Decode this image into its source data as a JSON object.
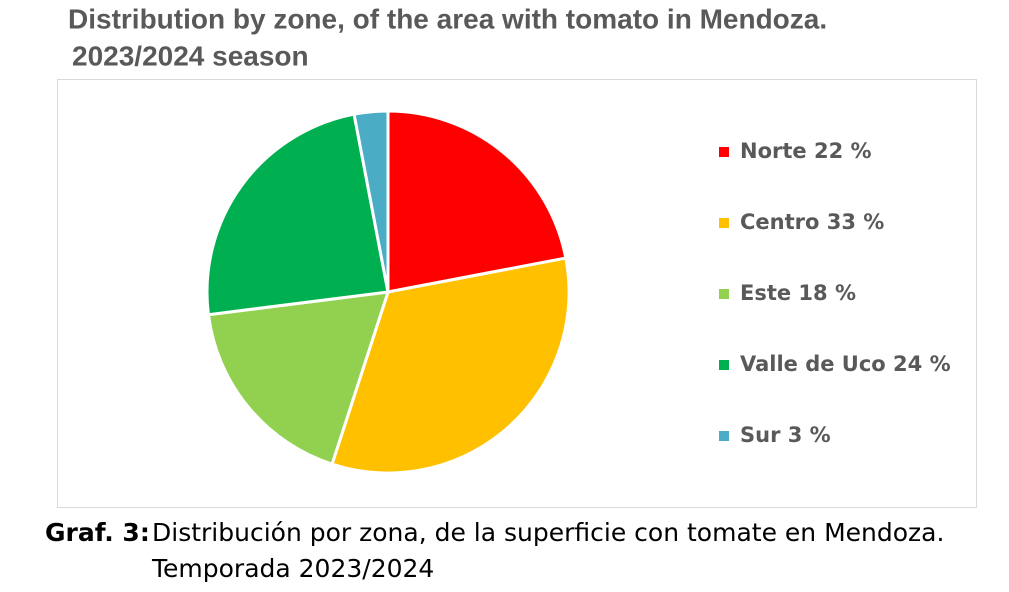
{
  "chart_data": {
    "type": "pie",
    "title": [
      "Distribution by zone, of the area with tomato in Mendoza.",
      "2023/2024 season"
    ],
    "categories": [
      "Norte 22 %",
      "Centro 33 %",
      "Este 18 %",
      "Valle de Uco 24 %",
      "Sur 3 %"
    ],
    "values": [
      22,
      33,
      18,
      24,
      3
    ],
    "colors": [
      "#ff0000",
      "#ffc000",
      "#92d050",
      "#00b050",
      "#4bacc6"
    ],
    "legend": "right"
  },
  "caption": {
    "label": "Graf. 3:",
    "lines": [
      "Distribución por zona, de la superficie con tomate en Mendoza.",
      "Temporada 2023/2024"
    ]
  }
}
